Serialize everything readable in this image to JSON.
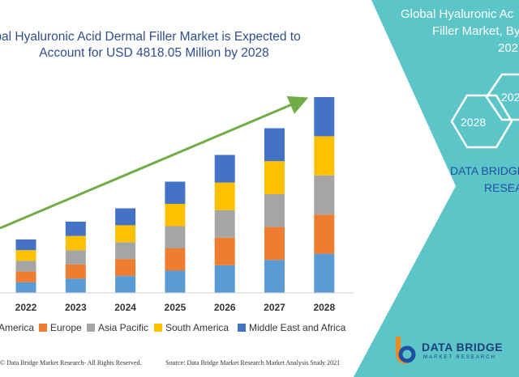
{
  "chart_data": {
    "type": "bar",
    "stacked": true,
    "title_line1": "Global Hyaluronic Acid Dermal Filler Market is Expected to",
    "title_line2": "Account for USD 4818.05 Million by 2028",
    "categories": [
      "2022",
      "2023",
      "2024",
      "2025",
      "2026",
      "2027",
      "2028"
    ],
    "series": [
      {
        "name": "North America",
        "color": "#5b9bd5",
        "values": [
          12,
          16,
          19,
          25,
          31,
          37,
          44
        ]
      },
      {
        "name": "Europe",
        "color": "#ed7d31",
        "values": [
          12,
          16,
          19,
          25,
          31,
          37,
          44
        ]
      },
      {
        "name": "Asia Pacific",
        "color": "#a5a5a5",
        "values": [
          12,
          16,
          19,
          25,
          31,
          37,
          44
        ]
      },
      {
        "name": "South America",
        "color": "#ffc000",
        "values": [
          12,
          16,
          19,
          25,
          31,
          37,
          44
        ]
      },
      {
        "name": "Middle East and Africa",
        "color": "#4472c4",
        "values": [
          12,
          16,
          19,
          25,
          31,
          37,
          44
        ]
      }
    ],
    "legend_position": "bottom",
    "grid": false,
    "trend_arrow_color": "#70ad47",
    "legend_visible": [
      "America",
      "Europe",
      "Asia Pacific",
      "South America",
      "Middle East and Africa"
    ]
  },
  "footer": {
    "copyright": "© Data Bridge Market Research- All Rights Reserved.",
    "source": "Source: Data Bridge Market Research Market Analysis Study 2021"
  },
  "panel": {
    "heading_line1": "Global Hyaluronic Ac",
    "heading_line2": "Filler Market, By",
    "heading_line3": "202",
    "hex1_label": "2028",
    "hex2_label": "202",
    "brand_line1": "DATA BRIDGE",
    "brand_line2": "RESEA",
    "bg_color": "#5bc5c8"
  },
  "logo": {
    "name": "DATA BRIDGE",
    "tagline": "MARKET RESEARCH"
  }
}
